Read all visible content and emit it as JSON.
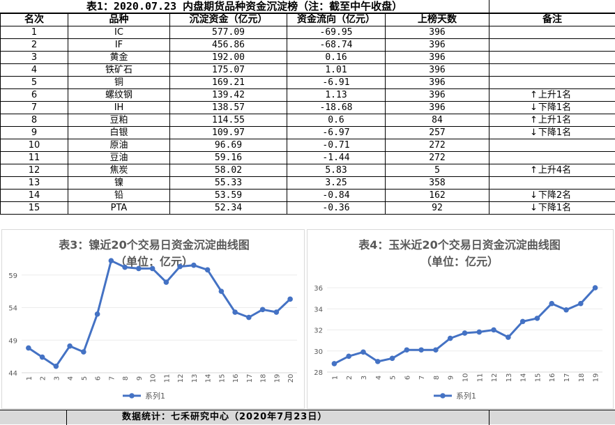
{
  "title": "表1：2020.07.23 内盘期货品种资金沉淀榜（注：截至中午收盘）",
  "table": {
    "headers": [
      "名次",
      "品种",
      "沉淀资金（亿元）",
      "资金流向（亿元）",
      "上榜天数",
      "备注"
    ],
    "rows": [
      {
        "rank": "1",
        "name": "IC",
        "capital": "577.09",
        "flow": "-69.95",
        "days": "396",
        "arrow": "",
        "note": ""
      },
      {
        "rank": "2",
        "name": "IF",
        "capital": "456.86",
        "flow": "-68.74",
        "days": "396",
        "arrow": "",
        "note": ""
      },
      {
        "rank": "3",
        "name": "黄金",
        "capital": "192.00",
        "flow": "0.16",
        "days": "396",
        "arrow": "",
        "note": ""
      },
      {
        "rank": "4",
        "name": "铁矿石",
        "capital": "175.07",
        "flow": "1.01",
        "days": "396",
        "arrow": "",
        "note": ""
      },
      {
        "rank": "5",
        "name": "铜",
        "capital": "169.21",
        "flow": "-6.91",
        "days": "396",
        "arrow": "",
        "note": ""
      },
      {
        "rank": "6",
        "name": "螺纹钢",
        "capital": "139.42",
        "flow": "1.13",
        "days": "396",
        "arrow": "↑",
        "note": "上升1名"
      },
      {
        "rank": "7",
        "name": "IH",
        "capital": "138.57",
        "flow": "-18.68",
        "days": "396",
        "arrow": "↓",
        "note": "下降1名"
      },
      {
        "rank": "8",
        "name": "豆粕",
        "capital": "114.55",
        "flow": "0.6",
        "days": "84",
        "arrow": "↑",
        "note": "上升1名"
      },
      {
        "rank": "9",
        "name": "白银",
        "capital": "109.97",
        "flow": "-6.97",
        "days": "257",
        "arrow": "↓",
        "note": "下降1名"
      },
      {
        "rank": "10",
        "name": "原油",
        "capital": "96.69",
        "flow": "-0.71",
        "days": "272",
        "arrow": "",
        "note": ""
      },
      {
        "rank": "11",
        "name": "豆油",
        "capital": "59.16",
        "flow": "-1.44",
        "days": "272",
        "arrow": "",
        "note": ""
      },
      {
        "rank": "12",
        "name": "焦炭",
        "capital": "58.02",
        "flow": "5.83",
        "days": "5",
        "arrow": "↑",
        "note": "上升4名"
      },
      {
        "rank": "13",
        "name": "镍",
        "capital": "55.33",
        "flow": "3.25",
        "days": "358",
        "arrow": "",
        "note": ""
      },
      {
        "rank": "14",
        "name": "铅",
        "capital": "53.59",
        "flow": "-0.84",
        "days": "162",
        "arrow": "↓",
        "note": "下降2名"
      },
      {
        "rank": "15",
        "name": "PTA",
        "capital": "52.34",
        "flow": "-0.36",
        "days": "92",
        "arrow": "↓",
        "note": "下降1名"
      }
    ]
  },
  "chart_data": [
    {
      "type": "line",
      "title": "表3：镍近20个交易日资金沉淀曲线图",
      "subtitle": "（单位：亿元）",
      "x": [
        "1",
        "2",
        "3",
        "4",
        "5",
        "6",
        "7",
        "8",
        "9",
        "10",
        "11",
        "12",
        "13",
        "14",
        "15",
        "16",
        "17",
        "18",
        "19",
        "20"
      ],
      "series": [
        {
          "name": "系列1",
          "values": [
            47.8,
            46.4,
            45.0,
            48.1,
            47.2,
            53.0,
            61.2,
            60.2,
            60.0,
            60.0,
            57.9,
            60.3,
            60.5,
            59.8,
            56.5,
            53.3,
            52.5,
            53.7,
            53.3,
            55.3
          ]
        }
      ],
      "ylim": [
        44,
        64
      ],
      "yticks": [
        44,
        49,
        54,
        59
      ],
      "color": "#4472c4",
      "legend": "bottom"
    },
    {
      "type": "line",
      "title": "表4：玉米近20个交易日资金沉淀曲线图",
      "subtitle": "（单位：亿元）",
      "x": [
        "1",
        "2",
        "3",
        "4",
        "5",
        "6",
        "7",
        "8",
        "9",
        "10",
        "11",
        "12",
        "13",
        "14",
        "15",
        "16",
        "17",
        "18",
        "19"
      ],
      "series": [
        {
          "name": "系列1",
          "values": [
            28.8,
            29.5,
            29.9,
            29.0,
            29.3,
            30.1,
            30.1,
            30.1,
            31.2,
            31.7,
            31.8,
            32.0,
            31.3,
            32.8,
            33.1,
            34.5,
            33.9,
            34.5,
            36.0
          ]
        }
      ],
      "ylim": [
        28,
        36
      ],
      "yticks": [
        28,
        30,
        32,
        34,
        36
      ],
      "color": "#4472c4",
      "legend": "bottom"
    }
  ],
  "footer": "数据统计：七禾研究中心（2020年7月23日）"
}
